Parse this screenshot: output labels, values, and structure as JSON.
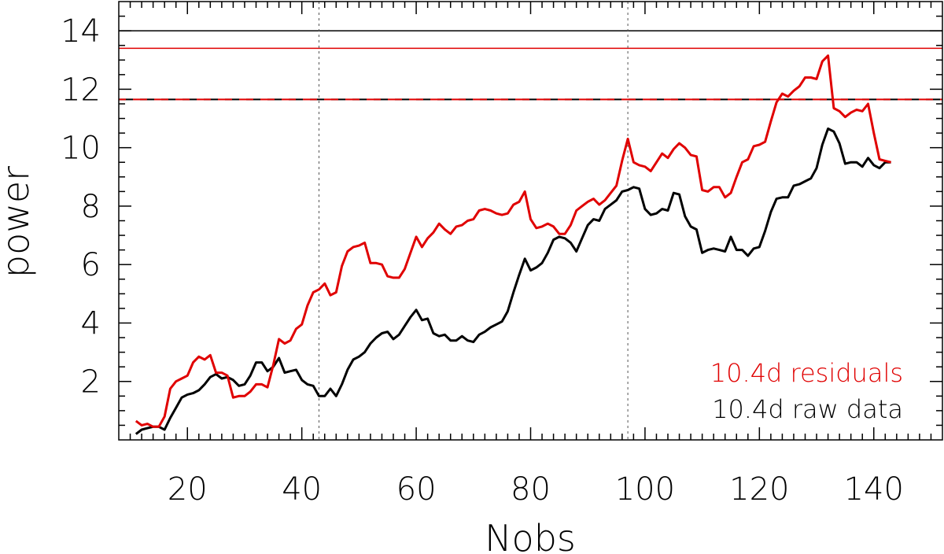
{
  "chart_data": {
    "type": "line",
    "title": "",
    "xlabel": "Nobs",
    "ylabel": "power",
    "xlim": [
      8,
      152
    ],
    "ylim": [
      0,
      15
    ],
    "x_ticks": [
      20,
      40,
      60,
      80,
      100,
      120,
      140
    ],
    "y_ticks": [
      2,
      4,
      6,
      8,
      10,
      12,
      14
    ],
    "grid": false,
    "legend": "bottom-right",
    "reference_lines": [
      {
        "orientation": "horizontal",
        "value": 14.0,
        "color": "#000000",
        "style": "solid"
      },
      {
        "orientation": "horizontal",
        "value": 13.4,
        "color": "#e00000",
        "style": "solid"
      },
      {
        "orientation": "horizontal",
        "value": 11.65,
        "color": "#000000",
        "style": "dashed"
      },
      {
        "orientation": "horizontal",
        "value": 11.65,
        "color": "#e00000",
        "style": "dashed"
      },
      {
        "orientation": "vertical",
        "value": 43,
        "color": "#555555",
        "style": "dotted"
      },
      {
        "orientation": "vertical",
        "value": 97,
        "color": "#555555",
        "style": "dotted"
      }
    ],
    "series": [
      {
        "name": "10.4d residuals",
        "color": "#e00000",
        "points": [
          [
            11,
            0.65
          ],
          [
            12,
            0.5
          ],
          [
            13,
            0.55
          ],
          [
            14,
            0.45
          ],
          [
            15,
            0.45
          ],
          [
            16,
            0.8
          ],
          [
            17,
            1.75
          ],
          [
            18,
            2.0
          ],
          [
            19,
            2.1
          ],
          [
            20,
            2.2
          ],
          [
            21,
            2.65
          ],
          [
            22,
            2.85
          ],
          [
            23,
            2.75
          ],
          [
            24,
            2.9
          ],
          [
            25,
            2.3
          ],
          [
            26,
            2.3
          ],
          [
            27,
            2.2
          ],
          [
            28,
            1.45
          ],
          [
            29,
            1.5
          ],
          [
            30,
            1.5
          ],
          [
            31,
            1.65
          ],
          [
            32,
            1.9
          ],
          [
            33,
            1.9
          ],
          [
            34,
            1.8
          ],
          [
            35,
            2.55
          ],
          [
            36,
            3.45
          ],
          [
            37,
            3.3
          ],
          [
            38,
            3.4
          ],
          [
            39,
            3.8
          ],
          [
            40,
            3.95
          ],
          [
            41,
            4.6
          ],
          [
            42,
            5.05
          ],
          [
            43,
            5.15
          ],
          [
            44,
            5.35
          ],
          [
            45,
            4.95
          ],
          [
            46,
            5.05
          ],
          [
            47,
            5.95
          ],
          [
            48,
            6.45
          ],
          [
            49,
            6.6
          ],
          [
            50,
            6.65
          ],
          [
            51,
            6.75
          ],
          [
            52,
            6.05
          ],
          [
            53,
            6.05
          ],
          [
            54,
            6.0
          ],
          [
            55,
            5.6
          ],
          [
            56,
            5.55
          ],
          [
            57,
            5.55
          ],
          [
            58,
            5.85
          ],
          [
            59,
            6.4
          ],
          [
            60,
            6.95
          ],
          [
            61,
            6.6
          ],
          [
            62,
            6.9
          ],
          [
            63,
            7.1
          ],
          [
            64,
            7.4
          ],
          [
            65,
            7.2
          ],
          [
            66,
            7.05
          ],
          [
            67,
            7.3
          ],
          [
            68,
            7.35
          ],
          [
            69,
            7.5
          ],
          [
            70,
            7.55
          ],
          [
            71,
            7.85
          ],
          [
            72,
            7.9
          ],
          [
            73,
            7.85
          ],
          [
            74,
            7.75
          ],
          [
            75,
            7.7
          ],
          [
            76,
            7.75
          ],
          [
            77,
            8.05
          ],
          [
            78,
            8.15
          ],
          [
            79,
            8.5
          ],
          [
            80,
            7.55
          ],
          [
            81,
            7.25
          ],
          [
            82,
            7.3
          ],
          [
            83,
            7.4
          ],
          [
            84,
            7.3
          ],
          [
            85,
            7.05
          ],
          [
            86,
            7.05
          ],
          [
            87,
            7.35
          ],
          [
            88,
            7.85
          ],
          [
            89,
            8.0
          ],
          [
            90,
            8.15
          ],
          [
            91,
            8.25
          ],
          [
            92,
            8.05
          ],
          [
            93,
            8.2
          ],
          [
            94,
            8.45
          ],
          [
            95,
            8.7
          ],
          [
            96,
            9.55
          ],
          [
            97,
            10.3
          ],
          [
            98,
            9.5
          ],
          [
            99,
            9.4
          ],
          [
            100,
            9.35
          ],
          [
            101,
            9.2
          ],
          [
            102,
            9.5
          ],
          [
            103,
            9.8
          ],
          [
            104,
            9.65
          ],
          [
            105,
            9.95
          ],
          [
            106,
            10.15
          ],
          [
            107,
            10.0
          ],
          [
            108,
            9.75
          ],
          [
            109,
            9.7
          ],
          [
            110,
            8.55
          ],
          [
            111,
            8.5
          ],
          [
            112,
            8.65
          ],
          [
            113,
            8.65
          ],
          [
            114,
            8.3
          ],
          [
            115,
            8.45
          ],
          [
            116,
            9.0
          ],
          [
            117,
            9.5
          ],
          [
            118,
            9.6
          ],
          [
            119,
            10.05
          ],
          [
            120,
            10.1
          ],
          [
            121,
            10.2
          ],
          [
            122,
            10.9
          ],
          [
            123,
            11.55
          ],
          [
            124,
            11.85
          ],
          [
            125,
            11.75
          ],
          [
            126,
            11.95
          ],
          [
            127,
            12.1
          ],
          [
            128,
            12.4
          ],
          [
            129,
            12.4
          ],
          [
            130,
            12.35
          ],
          [
            131,
            12.95
          ],
          [
            132,
            13.15
          ],
          [
            133,
            11.35
          ],
          [
            134,
            11.25
          ],
          [
            135,
            11.05
          ],
          [
            136,
            11.2
          ],
          [
            137,
            11.3
          ],
          [
            138,
            11.25
          ],
          [
            139,
            11.5
          ],
          [
            140,
            10.5
          ],
          [
            141,
            9.6
          ],
          [
            142,
            9.55
          ],
          [
            143,
            9.5
          ]
        ]
      },
      {
        "name": "10.4d raw data",
        "color": "#000000",
        "points": [
          [
            11,
            0.2
          ],
          [
            12,
            0.35
          ],
          [
            13,
            0.4
          ],
          [
            14,
            0.45
          ],
          [
            15,
            0.45
          ],
          [
            16,
            0.35
          ],
          [
            17,
            0.75
          ],
          [
            18,
            1.1
          ],
          [
            19,
            1.45
          ],
          [
            20,
            1.55
          ],
          [
            21,
            1.6
          ],
          [
            22,
            1.7
          ],
          [
            23,
            1.9
          ],
          [
            24,
            2.15
          ],
          [
            25,
            2.25
          ],
          [
            26,
            2.1
          ],
          [
            27,
            2.15
          ],
          [
            28,
            2.05
          ],
          [
            29,
            1.85
          ],
          [
            30,
            1.9
          ],
          [
            31,
            2.2
          ],
          [
            32,
            2.65
          ],
          [
            33,
            2.65
          ],
          [
            34,
            2.35
          ],
          [
            35,
            2.5
          ],
          [
            36,
            2.8
          ],
          [
            37,
            2.3
          ],
          [
            38,
            2.35
          ],
          [
            39,
            2.4
          ],
          [
            40,
            2.05
          ],
          [
            41,
            1.9
          ],
          [
            42,
            1.85
          ],
          [
            43,
            1.5
          ],
          [
            44,
            1.5
          ],
          [
            45,
            1.75
          ],
          [
            46,
            1.5
          ],
          [
            47,
            1.9
          ],
          [
            48,
            2.4
          ],
          [
            49,
            2.75
          ],
          [
            50,
            2.85
          ],
          [
            51,
            3.0
          ],
          [
            52,
            3.3
          ],
          [
            53,
            3.5
          ],
          [
            54,
            3.65
          ],
          [
            55,
            3.7
          ],
          [
            56,
            3.45
          ],
          [
            57,
            3.6
          ],
          [
            58,
            3.9
          ],
          [
            59,
            4.2
          ],
          [
            60,
            4.45
          ],
          [
            61,
            4.1
          ],
          [
            62,
            4.15
          ],
          [
            63,
            3.65
          ],
          [
            64,
            3.55
          ],
          [
            65,
            3.6
          ],
          [
            66,
            3.4
          ],
          [
            67,
            3.4
          ],
          [
            68,
            3.55
          ],
          [
            69,
            3.4
          ],
          [
            70,
            3.35
          ],
          [
            71,
            3.6
          ],
          [
            72,
            3.7
          ],
          [
            73,
            3.85
          ],
          [
            74,
            3.95
          ],
          [
            75,
            4.05
          ],
          [
            76,
            4.4
          ],
          [
            77,
            5.05
          ],
          [
            78,
            5.65
          ],
          [
            79,
            6.2
          ],
          [
            80,
            5.8
          ],
          [
            81,
            5.9
          ],
          [
            82,
            6.05
          ],
          [
            83,
            6.4
          ],
          [
            84,
            6.85
          ],
          [
            85,
            6.95
          ],
          [
            86,
            6.9
          ],
          [
            87,
            6.75
          ],
          [
            88,
            6.45
          ],
          [
            89,
            6.9
          ],
          [
            90,
            7.35
          ],
          [
            91,
            7.55
          ],
          [
            92,
            7.5
          ],
          [
            93,
            7.9
          ],
          [
            94,
            8.05
          ],
          [
            95,
            8.2
          ],
          [
            96,
            8.5
          ],
          [
            97,
            8.55
          ],
          [
            98,
            8.65
          ],
          [
            99,
            8.6
          ],
          [
            100,
            7.9
          ],
          [
            101,
            7.7
          ],
          [
            102,
            7.75
          ],
          [
            103,
            7.9
          ],
          [
            104,
            7.85
          ],
          [
            105,
            8.45
          ],
          [
            106,
            8.4
          ],
          [
            107,
            7.65
          ],
          [
            108,
            7.3
          ],
          [
            109,
            7.2
          ],
          [
            110,
            6.4
          ],
          [
            111,
            6.5
          ],
          [
            112,
            6.55
          ],
          [
            113,
            6.5
          ],
          [
            114,
            6.45
          ],
          [
            115,
            6.95
          ],
          [
            116,
            6.5
          ],
          [
            117,
            6.5
          ],
          [
            118,
            6.3
          ],
          [
            119,
            6.55
          ],
          [
            120,
            6.6
          ],
          [
            121,
            7.15
          ],
          [
            122,
            7.8
          ],
          [
            123,
            8.25
          ],
          [
            124,
            8.3
          ],
          [
            125,
            8.3
          ],
          [
            126,
            8.7
          ],
          [
            127,
            8.75
          ],
          [
            128,
            8.85
          ],
          [
            129,
            8.95
          ],
          [
            130,
            9.3
          ],
          [
            131,
            10.1
          ],
          [
            132,
            10.65
          ],
          [
            133,
            10.55
          ],
          [
            134,
            10.15
          ],
          [
            135,
            9.45
          ],
          [
            136,
            9.5
          ],
          [
            137,
            9.5
          ],
          [
            138,
            9.35
          ],
          [
            139,
            9.65
          ],
          [
            140,
            9.4
          ],
          [
            141,
            9.3
          ],
          [
            142,
            9.5
          ],
          [
            143,
            9.5
          ]
        ]
      }
    ]
  }
}
